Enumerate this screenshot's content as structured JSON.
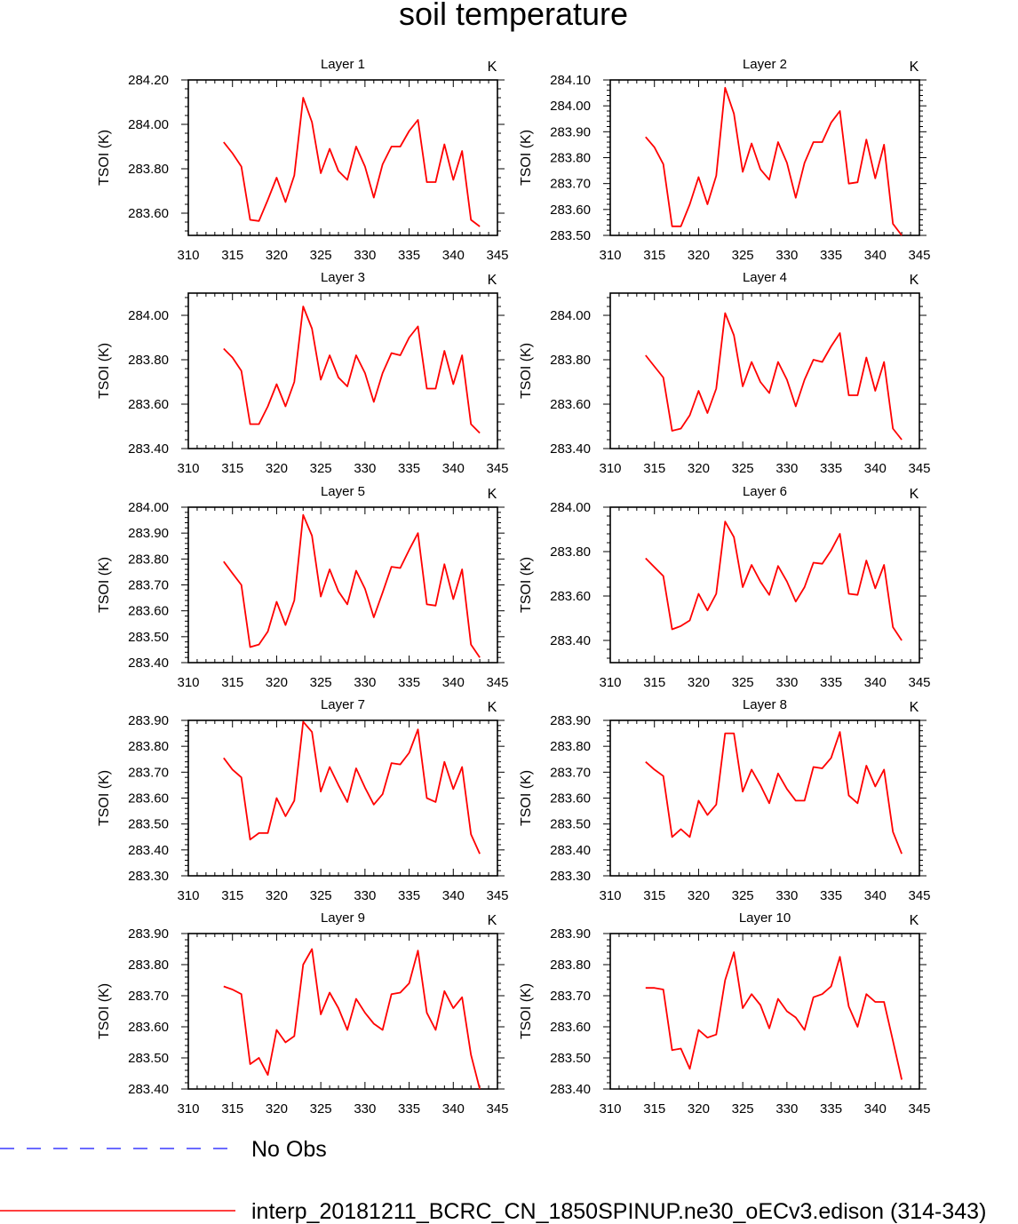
{
  "title": "soil temperature",
  "legend": {
    "entries": [
      {
        "label": "No Obs",
        "color": "#3a3aff",
        "style": "dashed"
      },
      {
        "label": "interp_20181211_BCRC_CN_1850SPINUP.ne30_oECv3.edison (314-343)",
        "color": "#ff0000",
        "style": "solid"
      }
    ]
  },
  "chart_data": [
    {
      "type": "line",
      "title": "Layer 1",
      "unit_label": "K",
      "ylabel": "TSOI  (K)",
      "xlim": [
        310,
        345
      ],
      "ylim": [
        283.5,
        284.2
      ],
      "xticks": [
        "310",
        "315",
        "320",
        "325",
        "330",
        "335",
        "340",
        "345"
      ],
      "yticks": [
        "283.60",
        "283.80",
        "284.00",
        "284.20"
      ],
      "series": [
        {
          "x": [
            314,
            315,
            316,
            317,
            318,
            319,
            320,
            321,
            322,
            323,
            324,
            325,
            326,
            327,
            328,
            329,
            330,
            331,
            332,
            333,
            334,
            335,
            336,
            337,
            338,
            339,
            340,
            341,
            342,
            343
          ],
          "values": [
            283.92,
            283.87,
            283.81,
            283.57,
            283.565,
            283.66,
            283.76,
            283.65,
            283.77,
            284.12,
            284.01,
            283.78,
            283.89,
            283.79,
            283.75,
            283.9,
            283.81,
            283.67,
            283.82,
            283.9,
            283.9,
            283.97,
            284.02,
            283.74,
            283.74,
            283.91,
            283.75,
            283.88,
            283.57,
            283.54
          ]
        }
      ]
    },
    {
      "type": "line",
      "title": "Layer 2",
      "unit_label": "K",
      "ylabel": "TSOI  (K)",
      "xlim": [
        310,
        345
      ],
      "ylim": [
        283.5,
        284.1
      ],
      "xticks": [
        "310",
        "315",
        "320",
        "325",
        "330",
        "335",
        "340",
        "345"
      ],
      "yticks": [
        "283.50",
        "283.60",
        "283.70",
        "283.80",
        "283.90",
        "284.00",
        "284.10"
      ],
      "series": [
        {
          "x": [
            314,
            315,
            316,
            317,
            318,
            319,
            320,
            321,
            322,
            323,
            324,
            325,
            326,
            327,
            328,
            329,
            330,
            331,
            332,
            333,
            334,
            335,
            336,
            337,
            338,
            339,
            340,
            341,
            342,
            343
          ],
          "values": [
            283.88,
            283.84,
            283.775,
            283.535,
            283.535,
            283.62,
            283.725,
            283.62,
            283.73,
            284.07,
            283.97,
            283.745,
            283.855,
            283.755,
            283.715,
            283.86,
            283.78,
            283.645,
            283.78,
            283.86,
            283.86,
            283.935,
            283.98,
            283.7,
            283.705,
            283.87,
            283.72,
            283.85,
            283.545,
            283.5
          ]
        }
      ]
    },
    {
      "type": "line",
      "title": "Layer 3",
      "unit_label": "K",
      "ylabel": "TSOI  (K)",
      "xlim": [
        310,
        345
      ],
      "ylim": [
        283.4,
        284.1
      ],
      "xticks": [
        "310",
        "315",
        "320",
        "325",
        "330",
        "335",
        "340",
        "345"
      ],
      "yticks": [
        "283.40",
        "283.60",
        "283.80",
        "284.00"
      ],
      "series": [
        {
          "x": [
            314,
            315,
            316,
            317,
            318,
            319,
            320,
            321,
            322,
            323,
            324,
            325,
            326,
            327,
            328,
            329,
            330,
            331,
            332,
            333,
            334,
            335,
            336,
            337,
            338,
            339,
            340,
            341,
            342,
            343
          ],
          "values": [
            283.85,
            283.81,
            283.75,
            283.51,
            283.51,
            283.59,
            283.69,
            283.59,
            283.7,
            284.04,
            283.94,
            283.71,
            283.82,
            283.72,
            283.68,
            283.82,
            283.74,
            283.61,
            283.74,
            283.83,
            283.82,
            283.9,
            283.95,
            283.67,
            283.67,
            283.84,
            283.69,
            283.82,
            283.51,
            283.47
          ]
        }
      ]
    },
    {
      "type": "line",
      "title": "Layer 4",
      "unit_label": "K",
      "ylabel": "TSOI  (K)",
      "xlim": [
        310,
        345
      ],
      "ylim": [
        283.4,
        284.1
      ],
      "xticks": [
        "310",
        "315",
        "320",
        "325",
        "330",
        "335",
        "340",
        "345"
      ],
      "yticks": [
        "283.40",
        "283.60",
        "283.80",
        "284.00"
      ],
      "series": [
        {
          "x": [
            314,
            315,
            316,
            317,
            318,
            319,
            320,
            321,
            322,
            323,
            324,
            325,
            326,
            327,
            328,
            329,
            330,
            331,
            332,
            333,
            334,
            335,
            336,
            337,
            338,
            339,
            340,
            341,
            342,
            343
          ],
          "values": [
            283.82,
            283.77,
            283.72,
            283.48,
            283.49,
            283.55,
            283.66,
            283.56,
            283.67,
            284.01,
            283.91,
            283.68,
            283.79,
            283.7,
            283.65,
            283.79,
            283.71,
            283.59,
            283.71,
            283.8,
            283.79,
            283.86,
            283.92,
            283.64,
            283.64,
            283.81,
            283.66,
            283.79,
            283.49,
            283.44
          ]
        }
      ]
    },
    {
      "type": "line",
      "title": "Layer 5",
      "unit_label": "K",
      "ylabel": "TSOI  (K)",
      "xlim": [
        310,
        345
      ],
      "ylim": [
        283.4,
        284.0
      ],
      "xticks": [
        "310",
        "315",
        "320",
        "325",
        "330",
        "335",
        "340",
        "345"
      ],
      "yticks": [
        "283.40",
        "283.50",
        "283.60",
        "283.70",
        "283.80",
        "283.90",
        "284.00"
      ],
      "series": [
        {
          "x": [
            314,
            315,
            316,
            317,
            318,
            319,
            320,
            321,
            322,
            323,
            324,
            325,
            326,
            327,
            328,
            329,
            330,
            331,
            332,
            333,
            334,
            335,
            336,
            337,
            338,
            339,
            340,
            341,
            342,
            343
          ],
          "values": [
            283.79,
            283.745,
            283.7,
            283.46,
            283.47,
            283.52,
            283.635,
            283.545,
            283.64,
            283.97,
            283.89,
            283.655,
            283.76,
            283.675,
            283.625,
            283.755,
            283.685,
            283.575,
            283.67,
            283.77,
            283.765,
            283.835,
            283.9,
            283.625,
            283.62,
            283.78,
            283.645,
            283.76,
            283.47,
            283.42
          ]
        }
      ]
    },
    {
      "type": "line",
      "title": "Layer 6",
      "unit_label": "K",
      "ylabel": "TSOI  (K)",
      "xlim": [
        310,
        345
      ],
      "ylim": [
        283.3,
        284.0
      ],
      "xticks": [
        "310",
        "315",
        "320",
        "325",
        "330",
        "335",
        "340",
        "345"
      ],
      "yticks": [
        "283.40",
        "283.60",
        "283.80",
        "284.00"
      ],
      "series": [
        {
          "x": [
            314,
            315,
            316,
            317,
            318,
            319,
            320,
            321,
            322,
            323,
            324,
            325,
            326,
            327,
            328,
            329,
            330,
            331,
            332,
            333,
            334,
            335,
            336,
            337,
            338,
            339,
            340,
            341,
            342,
            343
          ],
          "values": [
            283.77,
            283.73,
            283.69,
            283.45,
            283.465,
            283.49,
            283.61,
            283.535,
            283.61,
            283.935,
            283.865,
            283.64,
            283.74,
            283.665,
            283.605,
            283.735,
            283.665,
            283.575,
            283.64,
            283.75,
            283.745,
            283.805,
            283.88,
            283.61,
            283.605,
            283.76,
            283.635,
            283.74,
            283.46,
            283.4
          ]
        }
      ]
    },
    {
      "type": "line",
      "title": "Layer 7",
      "unit_label": "K",
      "ylabel": "TSOI  (K)",
      "xlim": [
        310,
        345
      ],
      "ylim": [
        283.3,
        283.9
      ],
      "xticks": [
        "310",
        "315",
        "320",
        "325",
        "330",
        "335",
        "340",
        "345"
      ],
      "yticks": [
        "283.30",
        "283.40",
        "283.50",
        "283.60",
        "283.70",
        "283.80",
        "283.90"
      ],
      "series": [
        {
          "x": [
            314,
            315,
            316,
            317,
            318,
            319,
            320,
            321,
            322,
            323,
            324,
            325,
            326,
            327,
            328,
            329,
            330,
            331,
            332,
            333,
            334,
            335,
            336,
            337,
            338,
            339,
            340,
            341,
            342,
            343
          ],
          "values": [
            283.755,
            283.71,
            283.68,
            283.44,
            283.465,
            283.465,
            283.6,
            283.53,
            283.59,
            283.895,
            283.855,
            283.625,
            283.72,
            283.65,
            283.585,
            283.715,
            283.64,
            283.575,
            283.615,
            283.735,
            283.73,
            283.775,
            283.865,
            283.6,
            283.585,
            283.74,
            283.635,
            283.72,
            283.46,
            283.385
          ]
        }
      ]
    },
    {
      "type": "line",
      "title": "Layer 8",
      "unit_label": "K",
      "ylabel": "TSOI  (K)",
      "xlim": [
        310,
        345
      ],
      "ylim": [
        283.3,
        283.9
      ],
      "xticks": [
        "310",
        "315",
        "320",
        "325",
        "330",
        "335",
        "340",
        "345"
      ],
      "yticks": [
        "283.30",
        "283.40",
        "283.50",
        "283.60",
        "283.70",
        "283.80",
        "283.90"
      ],
      "series": [
        {
          "x": [
            314,
            315,
            316,
            317,
            318,
            319,
            320,
            321,
            322,
            323,
            324,
            325,
            326,
            327,
            328,
            329,
            330,
            331,
            332,
            333,
            334,
            335,
            336,
            337,
            338,
            339,
            340,
            341,
            342,
            343
          ],
          "values": [
            283.74,
            283.71,
            283.685,
            283.45,
            283.48,
            283.45,
            283.59,
            283.535,
            283.575,
            283.85,
            283.85,
            283.625,
            283.71,
            283.65,
            283.58,
            283.695,
            283.635,
            283.59,
            283.59,
            283.72,
            283.715,
            283.755,
            283.855,
            283.61,
            283.58,
            283.725,
            283.645,
            283.71,
            283.47,
            283.385
          ]
        }
      ]
    },
    {
      "type": "line",
      "title": "Layer 9",
      "unit_label": "K",
      "ylabel": "TSOI  (K)",
      "xlim": [
        310,
        345
      ],
      "ylim": [
        283.4,
        283.9
      ],
      "xticks": [
        "310",
        "315",
        "320",
        "325",
        "330",
        "335",
        "340",
        "345"
      ],
      "yticks": [
        "283.40",
        "283.50",
        "283.60",
        "283.70",
        "283.80",
        "283.90"
      ],
      "series": [
        {
          "x": [
            314,
            315,
            316,
            317,
            318,
            319,
            320,
            321,
            322,
            323,
            324,
            325,
            326,
            327,
            328,
            329,
            330,
            331,
            332,
            333,
            334,
            335,
            336,
            337,
            338,
            339,
            340,
            341,
            342,
            343
          ],
          "values": [
            283.73,
            283.72,
            283.705,
            283.48,
            283.5,
            283.445,
            283.59,
            283.55,
            283.57,
            283.8,
            283.85,
            283.64,
            283.71,
            283.66,
            283.59,
            283.69,
            283.645,
            283.61,
            283.59,
            283.705,
            283.71,
            283.74,
            283.845,
            283.645,
            283.59,
            283.715,
            283.66,
            283.695,
            283.51,
            283.4
          ]
        }
      ]
    },
    {
      "type": "line",
      "title": "Layer 10",
      "unit_label": "K",
      "ylabel": "TSOI  (K)",
      "xlim": [
        310,
        345
      ],
      "ylim": [
        283.4,
        283.9
      ],
      "xticks": [
        "310",
        "315",
        "320",
        "325",
        "330",
        "335",
        "340",
        "345"
      ],
      "yticks": [
        "283.40",
        "283.50",
        "283.60",
        "283.70",
        "283.80",
        "283.90"
      ],
      "series": [
        {
          "x": [
            314,
            315,
            316,
            317,
            318,
            319,
            320,
            321,
            322,
            323,
            324,
            325,
            326,
            327,
            328,
            329,
            330,
            331,
            332,
            333,
            334,
            335,
            336,
            337,
            338,
            339,
            340,
            341,
            342,
            343
          ],
          "values": [
            283.725,
            283.725,
            283.72,
            283.525,
            283.53,
            283.465,
            283.59,
            283.565,
            283.575,
            283.75,
            283.84,
            283.66,
            283.705,
            283.67,
            283.595,
            283.69,
            283.65,
            283.63,
            283.59,
            283.695,
            283.705,
            283.73,
            283.825,
            283.665,
            283.6,
            283.705,
            283.68,
            283.68,
            283.555,
            283.43
          ]
        }
      ]
    }
  ]
}
